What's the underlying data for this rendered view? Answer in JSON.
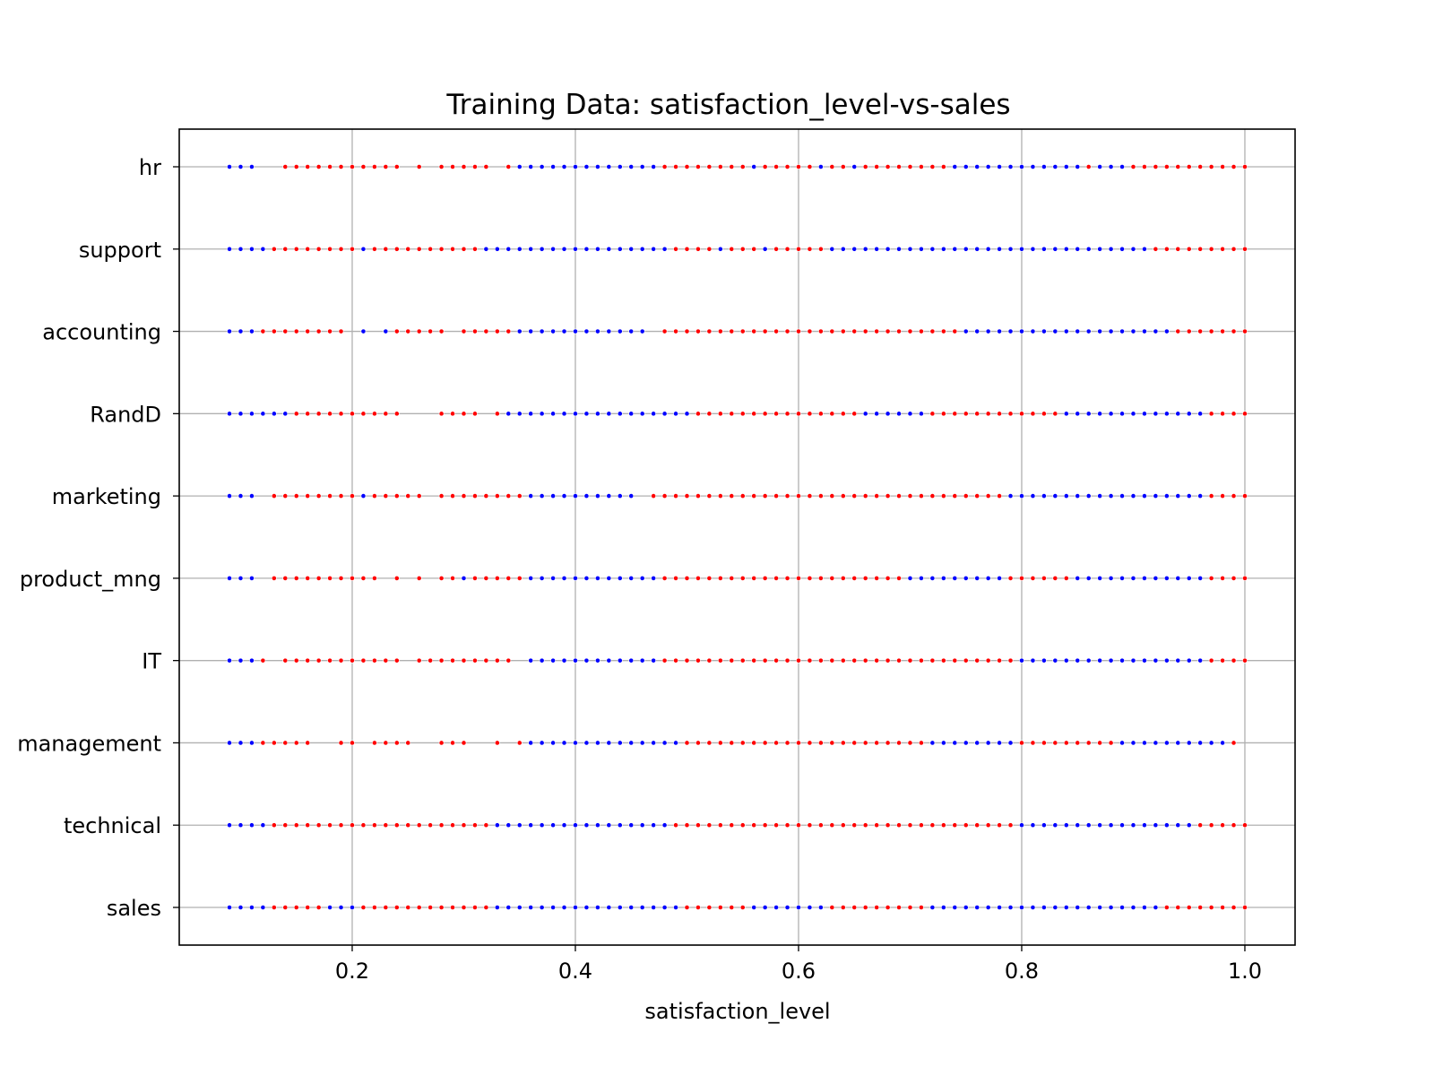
{
  "chart_data": {
    "type": "scatter",
    "title": "Training Data: satisfaction_level-vs-sales",
    "xlabel": "satisfaction_level",
    "ylabel": "",
    "xlim": [
      0.045,
      1.045
    ],
    "x_ticks": [
      0.2,
      0.4,
      0.6,
      0.8,
      1.0
    ],
    "x_tick_labels": [
      "0.2",
      "0.4",
      "0.6",
      "0.8",
      "1.0"
    ],
    "categories": [
      "sales",
      "technical",
      "management",
      "IT",
      "product_mng",
      "marketing",
      "RandD",
      "accounting",
      "support",
      "hr"
    ],
    "grid": true,
    "colors": {
      "blue": "#0000ff",
      "red": "#ff0000",
      "grid": "#b0b0b0"
    },
    "series": [
      {
        "category": "hr",
        "x": [
          0.09,
          0.1,
          0.11,
          0.14,
          0.15,
          0.16,
          0.17,
          0.18,
          0.19,
          0.2,
          0.21,
          0.22,
          0.23,
          0.24,
          0.26,
          0.28,
          0.29,
          0.3,
          0.31,
          0.32,
          0.34,
          0.35,
          0.36,
          0.37,
          0.38,
          0.39,
          0.4,
          0.41,
          0.42,
          0.43,
          0.44,
          0.45,
          0.46,
          0.47,
          0.48,
          0.49,
          0.5,
          0.51,
          0.52,
          0.53,
          0.54,
          0.55,
          0.56,
          0.57,
          0.58,
          0.59,
          0.6,
          0.61,
          0.62,
          0.63,
          0.64,
          0.65,
          0.66,
          0.67,
          0.68,
          0.69,
          0.7,
          0.71,
          0.72,
          0.73,
          0.74,
          0.75,
          0.76,
          0.77,
          0.78,
          0.79,
          0.8,
          0.81,
          0.82,
          0.83,
          0.84,
          0.85,
          0.86,
          0.87,
          0.88,
          0.89,
          0.9,
          0.91,
          0.92,
          0.93,
          0.94,
          0.95,
          0.96,
          0.97,
          0.98,
          0.99,
          1.0
        ],
        "colors": "bbbrrrrrrrrrrrrrrrrrrbbbbbbbbbbbbbrrrrrrrrbrrrrrbrrbrrrrrrrrbbbbbbbbbbbbrbbbrrrrrrrrrrrr"
      },
      {
        "category": "support",
        "x": [
          0.09,
          0.1,
          0.11,
          0.12,
          0.13,
          0.14,
          0.15,
          0.16,
          0.17,
          0.18,
          0.19,
          0.2,
          0.21,
          0.22,
          0.23,
          0.24,
          0.25,
          0.26,
          0.27,
          0.28,
          0.29,
          0.3,
          0.31,
          0.32,
          0.33,
          0.34,
          0.35,
          0.36,
          0.37,
          0.38,
          0.39,
          0.4,
          0.41,
          0.42,
          0.43,
          0.44,
          0.45,
          0.46,
          0.47,
          0.48,
          0.49,
          0.5,
          0.51,
          0.52,
          0.53,
          0.54,
          0.55,
          0.56,
          0.57,
          0.58,
          0.59,
          0.6,
          0.61,
          0.62,
          0.63,
          0.64,
          0.65,
          0.66,
          0.67,
          0.68,
          0.69,
          0.7,
          0.71,
          0.72,
          0.73,
          0.74,
          0.75,
          0.76,
          0.77,
          0.78,
          0.79,
          0.8,
          0.81,
          0.82,
          0.83,
          0.84,
          0.85,
          0.86,
          0.87,
          0.88,
          0.89,
          0.9,
          0.91,
          0.92,
          0.93,
          0.94,
          0.95,
          0.96,
          0.97,
          0.98,
          0.99,
          1.0
        ],
        "colors": "bbbbrrrrrrrrbrrrrrrrrrrbbbbbbbbbbbbbbbbbrrrrbrrrbrrrrrbbbbbbbbbbbbbbbbbbbbbbbbbbbbbrrrrrrr"
      },
      {
        "category": "accounting",
        "x": [
          0.09,
          0.1,
          0.11,
          0.12,
          0.13,
          0.14,
          0.15,
          0.16,
          0.17,
          0.18,
          0.19,
          0.21,
          0.23,
          0.24,
          0.25,
          0.26,
          0.27,
          0.28,
          0.3,
          0.31,
          0.32,
          0.33,
          0.34,
          0.35,
          0.36,
          0.37,
          0.38,
          0.39,
          0.4,
          0.41,
          0.42,
          0.43,
          0.44,
          0.45,
          0.46,
          0.48,
          0.49,
          0.5,
          0.51,
          0.52,
          0.53,
          0.54,
          0.55,
          0.56,
          0.57,
          0.58,
          0.59,
          0.6,
          0.61,
          0.62,
          0.63,
          0.64,
          0.65,
          0.66,
          0.67,
          0.68,
          0.69,
          0.7,
          0.71,
          0.72,
          0.73,
          0.74,
          0.75,
          0.76,
          0.77,
          0.78,
          0.79,
          0.8,
          0.81,
          0.82,
          0.83,
          0.84,
          0.85,
          0.86,
          0.87,
          0.88,
          0.89,
          0.9,
          0.91,
          0.92,
          0.93,
          0.94,
          0.95,
          0.96,
          0.97,
          0.98,
          0.99,
          1.0
        ],
        "colors": "bbbrrrrrrrrbbrrrrrrrrrrbbbbbbbbbbbbrrrrrrrrrrrrrrrrrrrrrrrrrrrbbbbbbbbbbbbbbbbbbbrrrrrrr"
      },
      {
        "category": "RandD",
        "x": [
          0.09,
          0.1,
          0.11,
          0.12,
          0.13,
          0.14,
          0.15,
          0.16,
          0.17,
          0.18,
          0.19,
          0.2,
          0.21,
          0.22,
          0.23,
          0.24,
          0.28,
          0.29,
          0.3,
          0.31,
          0.33,
          0.34,
          0.35,
          0.36,
          0.37,
          0.38,
          0.39,
          0.4,
          0.41,
          0.42,
          0.43,
          0.44,
          0.45,
          0.46,
          0.47,
          0.48,
          0.49,
          0.5,
          0.51,
          0.52,
          0.53,
          0.54,
          0.55,
          0.56,
          0.57,
          0.58,
          0.59,
          0.6,
          0.61,
          0.62,
          0.63,
          0.64,
          0.65,
          0.66,
          0.67,
          0.68,
          0.69,
          0.7,
          0.71,
          0.72,
          0.73,
          0.74,
          0.75,
          0.76,
          0.77,
          0.78,
          0.79,
          0.8,
          0.81,
          0.82,
          0.83,
          0.84,
          0.85,
          0.86,
          0.87,
          0.88,
          0.89,
          0.9,
          0.91,
          0.92,
          0.93,
          0.94,
          0.95,
          0.96,
          0.97,
          0.98,
          0.99,
          1.0
        ],
        "colors": "bbbbbbrrrrrrrrrrrrrrrbbbbbbbbbbbbbbbbbrrrrrrrrrrrrrrrbbbbbbrrrrrrrrrrrrbbbbbbbbbbbbbrrrrrr"
      },
      {
        "category": "marketing",
        "x": [
          0.09,
          0.1,
          0.11,
          0.13,
          0.14,
          0.15,
          0.16,
          0.17,
          0.18,
          0.19,
          0.2,
          0.21,
          0.22,
          0.23,
          0.24,
          0.25,
          0.26,
          0.28,
          0.29,
          0.3,
          0.31,
          0.32,
          0.33,
          0.34,
          0.35,
          0.36,
          0.37,
          0.38,
          0.39,
          0.4,
          0.41,
          0.42,
          0.43,
          0.44,
          0.45,
          0.47,
          0.48,
          0.49,
          0.5,
          0.51,
          0.52,
          0.53,
          0.54,
          0.55,
          0.56,
          0.57,
          0.58,
          0.59,
          0.6,
          0.61,
          0.62,
          0.63,
          0.64,
          0.65,
          0.66,
          0.67,
          0.68,
          0.69,
          0.7,
          0.71,
          0.72,
          0.73,
          0.74,
          0.75,
          0.76,
          0.77,
          0.78,
          0.79,
          0.8,
          0.81,
          0.82,
          0.83,
          0.84,
          0.85,
          0.86,
          0.87,
          0.88,
          0.89,
          0.9,
          0.91,
          0.92,
          0.93,
          0.94,
          0.95,
          0.96,
          0.97,
          0.98,
          0.99,
          1.0
        ],
        "colors": "bbbrrrrrrrrbrrrrrrrrrrrrrbbbbbbbbbbrrrrrrrrrrrrrrrrrrrrrrrrrrrrrrrrbbbbbbbbbbbbbbbbbbrrrrr"
      },
      {
        "category": "product_mng",
        "x": [
          0.09,
          0.1,
          0.11,
          0.13,
          0.14,
          0.15,
          0.16,
          0.17,
          0.18,
          0.19,
          0.2,
          0.21,
          0.22,
          0.24,
          0.26,
          0.28,
          0.29,
          0.3,
          0.31,
          0.32,
          0.33,
          0.34,
          0.35,
          0.36,
          0.37,
          0.38,
          0.39,
          0.4,
          0.41,
          0.42,
          0.43,
          0.44,
          0.45,
          0.46,
          0.47,
          0.48,
          0.49,
          0.5,
          0.51,
          0.52,
          0.53,
          0.54,
          0.55,
          0.56,
          0.57,
          0.58,
          0.59,
          0.6,
          0.61,
          0.62,
          0.63,
          0.64,
          0.65,
          0.66,
          0.67,
          0.68,
          0.69,
          0.7,
          0.71,
          0.72,
          0.73,
          0.74,
          0.75,
          0.76,
          0.77,
          0.78,
          0.79,
          0.8,
          0.81,
          0.82,
          0.83,
          0.84,
          0.85,
          0.86,
          0.87,
          0.88,
          0.89,
          0.9,
          0.91,
          0.92,
          0.93,
          0.94,
          0.95,
          0.96,
          0.97,
          0.98,
          0.99,
          1.0
        ],
        "colors": "bbbrrrrrrrrrrrrrrbrrrrrbbbbbbbbbbbbrrrrrrrrrrrrrrrrrrrrrrbbbbbbbbbrrrrrrbbbbbbbbbbbbrrrrrr"
      },
      {
        "category": "IT",
        "x": [
          0.09,
          0.1,
          0.11,
          0.12,
          0.14,
          0.15,
          0.16,
          0.17,
          0.18,
          0.19,
          0.2,
          0.21,
          0.22,
          0.23,
          0.24,
          0.26,
          0.27,
          0.28,
          0.29,
          0.3,
          0.31,
          0.32,
          0.33,
          0.34,
          0.36,
          0.37,
          0.38,
          0.39,
          0.4,
          0.41,
          0.42,
          0.43,
          0.44,
          0.45,
          0.46,
          0.47,
          0.48,
          0.49,
          0.5,
          0.51,
          0.52,
          0.53,
          0.54,
          0.55,
          0.56,
          0.57,
          0.58,
          0.59,
          0.6,
          0.61,
          0.62,
          0.63,
          0.64,
          0.65,
          0.66,
          0.67,
          0.68,
          0.69,
          0.7,
          0.71,
          0.72,
          0.73,
          0.74,
          0.75,
          0.76,
          0.77,
          0.78,
          0.79,
          0.8,
          0.81,
          0.82,
          0.83,
          0.84,
          0.85,
          0.86,
          0.87,
          0.88,
          0.89,
          0.9,
          0.91,
          0.92,
          0.93,
          0.94,
          0.95,
          0.96,
          0.97,
          0.98,
          0.99,
          1.0
        ],
        "colors": "bbbrrrrrrrrrrrrrrrrrrrrrbbbbbbbbbbbbrrrrrrrrrrrrrrrrrrrrrrrrrrrrrrrrbbbbbbbbbbbbbbbbbrrrrrr"
      },
      {
        "category": "management",
        "x": [
          0.09,
          0.1,
          0.11,
          0.12,
          0.13,
          0.14,
          0.15,
          0.16,
          0.19,
          0.2,
          0.22,
          0.23,
          0.24,
          0.25,
          0.28,
          0.29,
          0.3,
          0.33,
          0.35,
          0.36,
          0.37,
          0.38,
          0.39,
          0.4,
          0.41,
          0.42,
          0.43,
          0.44,
          0.45,
          0.46,
          0.47,
          0.48,
          0.49,
          0.5,
          0.51,
          0.52,
          0.53,
          0.54,
          0.55,
          0.56,
          0.57,
          0.58,
          0.59,
          0.6,
          0.61,
          0.62,
          0.63,
          0.64,
          0.65,
          0.66,
          0.67,
          0.68,
          0.69,
          0.7,
          0.71,
          0.72,
          0.73,
          0.74,
          0.75,
          0.76,
          0.77,
          0.78,
          0.79,
          0.8,
          0.81,
          0.82,
          0.83,
          0.84,
          0.85,
          0.86,
          0.87,
          0.88,
          0.89,
          0.9,
          0.91,
          0.92,
          0.93,
          0.94,
          0.95,
          0.96,
          0.97,
          0.98,
          0.99
        ],
        "colors": "bbbrrrrrrrrrrrrrrrrbbbbbbbbbbbbbbrrrrrrrrrrrrrrrrrrrrrrbbbbbbbbrrrrrrrrrbbbbbbbbbbrrrrrrr"
      },
      {
        "category": "technical",
        "x": [
          0.09,
          0.1,
          0.11,
          0.12,
          0.13,
          0.14,
          0.15,
          0.16,
          0.17,
          0.18,
          0.19,
          0.2,
          0.21,
          0.22,
          0.23,
          0.24,
          0.25,
          0.26,
          0.27,
          0.28,
          0.29,
          0.3,
          0.31,
          0.32,
          0.33,
          0.34,
          0.35,
          0.36,
          0.37,
          0.38,
          0.39,
          0.4,
          0.41,
          0.42,
          0.43,
          0.44,
          0.45,
          0.46,
          0.47,
          0.48,
          0.49,
          0.5,
          0.51,
          0.52,
          0.53,
          0.54,
          0.55,
          0.56,
          0.57,
          0.58,
          0.59,
          0.6,
          0.61,
          0.62,
          0.63,
          0.64,
          0.65,
          0.66,
          0.67,
          0.68,
          0.69,
          0.7,
          0.71,
          0.72,
          0.73,
          0.74,
          0.75,
          0.76,
          0.77,
          0.78,
          0.79,
          0.8,
          0.81,
          0.82,
          0.83,
          0.84,
          0.85,
          0.86,
          0.87,
          0.88,
          0.89,
          0.9,
          0.91,
          0.92,
          0.93,
          0.94,
          0.95,
          0.96,
          0.97,
          0.98,
          0.99,
          1.0
        ],
        "colors": "bbbbrrrrrrrrrrrrrrrrrrrrbbbbbbbbbbbbbbbbrrrrrrrrrrrrrrrrrrrrrrrrrrrrrrrbbbbbbbbbbbbbbbbrrrrrrr"
      },
      {
        "category": "sales",
        "x": [
          0.09,
          0.1,
          0.11,
          0.12,
          0.13,
          0.14,
          0.15,
          0.16,
          0.17,
          0.18,
          0.19,
          0.2,
          0.21,
          0.22,
          0.23,
          0.24,
          0.25,
          0.26,
          0.27,
          0.28,
          0.29,
          0.3,
          0.31,
          0.32,
          0.33,
          0.34,
          0.35,
          0.36,
          0.37,
          0.38,
          0.39,
          0.4,
          0.41,
          0.42,
          0.43,
          0.44,
          0.45,
          0.46,
          0.47,
          0.48,
          0.49,
          0.5,
          0.51,
          0.52,
          0.53,
          0.54,
          0.55,
          0.56,
          0.57,
          0.58,
          0.59,
          0.6,
          0.61,
          0.62,
          0.63,
          0.64,
          0.65,
          0.66,
          0.67,
          0.68,
          0.69,
          0.7,
          0.71,
          0.72,
          0.73,
          0.74,
          0.75,
          0.76,
          0.77,
          0.78,
          0.79,
          0.8,
          0.81,
          0.82,
          0.83,
          0.84,
          0.85,
          0.86,
          0.87,
          0.88,
          0.89,
          0.9,
          0.91,
          0.92,
          0.93,
          0.94,
          0.95,
          0.96,
          0.97,
          0.98,
          0.99,
          1.0
        ],
        "colors": "bbbbrrrrrbbbrrrrrrrrrrrrbbbbbbbbbbbbbbbbbrrrrrrbbbbbbbrrrrrrrrrbbbbbbbbbbbbbbbbbbbbbrrrrrrr"
      }
    ]
  }
}
